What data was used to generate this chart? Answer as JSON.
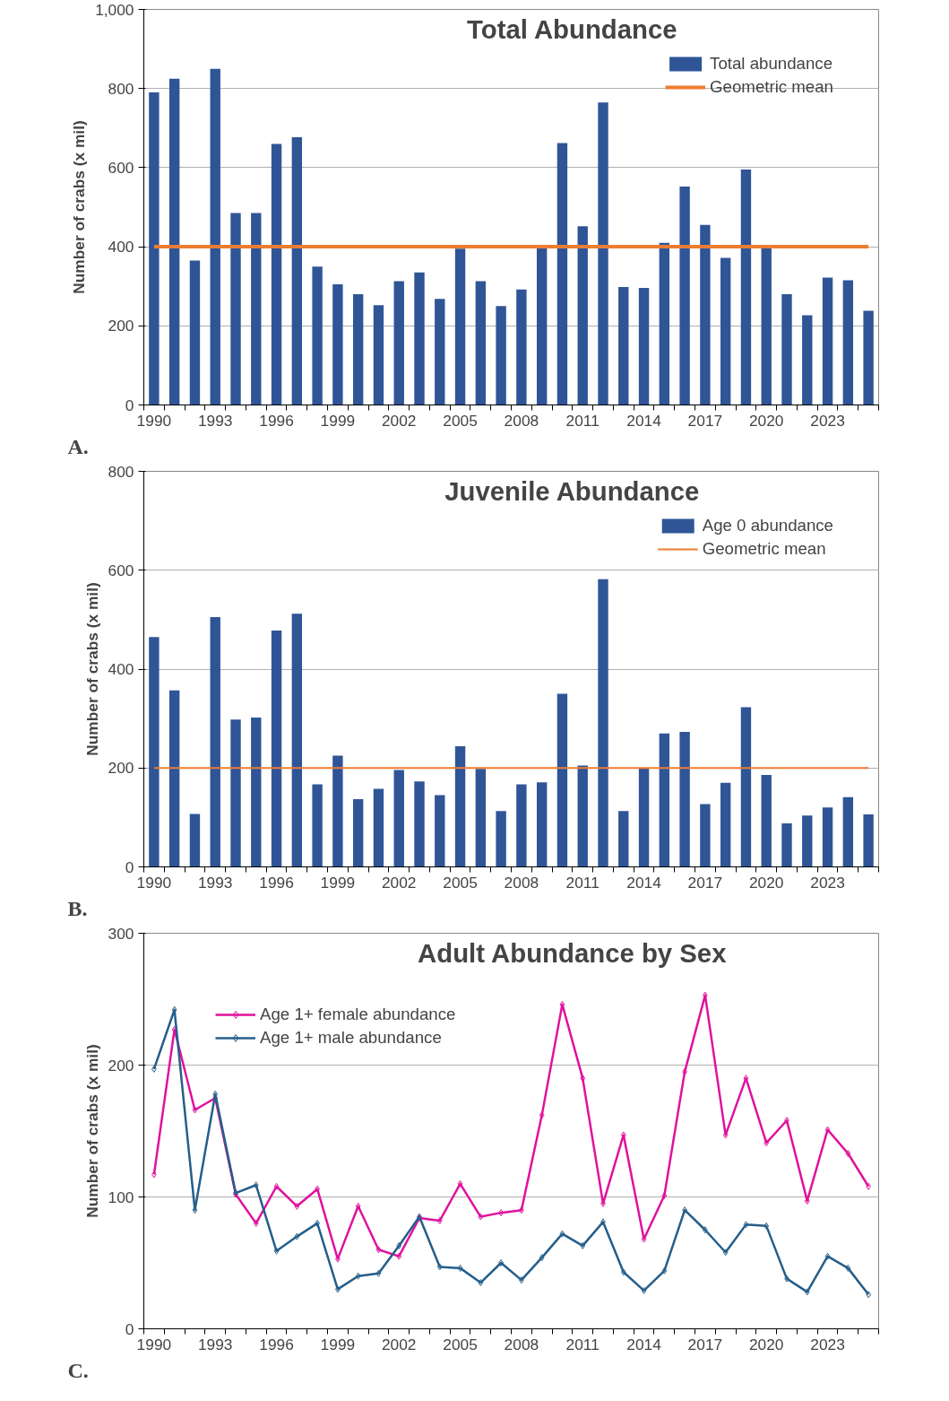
{
  "chart_data": [
    {
      "type": "bar",
      "title": "Total Abundance",
      "ylabel": "Number of crabs (x mil)",
      "annotations": [
        "A."
      ],
      "categories": [
        "1990",
        null,
        null,
        "1993",
        null,
        null,
        "1996",
        null,
        null,
        "1999",
        null,
        null,
        "2002",
        null,
        null,
        "2005",
        null,
        null,
        "2008",
        null,
        null,
        "2011",
        null,
        null,
        "2014",
        null,
        null,
        "2017",
        null,
        null,
        "2020",
        null,
        null,
        "2023",
        null,
        null
      ],
      "series": [
        {
          "name": "Total abundance",
          "color": "#2f5597",
          "values": [
            790,
            825,
            365,
            850,
            485,
            485,
            660,
            677,
            350,
            305,
            280,
            252,
            313,
            335,
            268,
            395,
            313,
            250,
            292,
            398,
            662,
            452,
            765,
            298,
            296,
            410,
            552,
            455,
            372,
            595,
            398,
            280,
            227,
            322,
            315,
            238
          ]
        }
      ],
      "ref_lines": [
        {
          "axis": "y",
          "value": 400,
          "label": "Geometric mean",
          "color": "#ed7d31"
        }
      ],
      "ylim": [
        0,
        1000
      ],
      "yticks": [
        0,
        200,
        400,
        600,
        800,
        {
          "value": 1000,
          "label": "1,000"
        }
      ],
      "grid": "y",
      "legend": "top right"
    },
    {
      "type": "bar",
      "title": "Juvenile Abundance",
      "ylabel": "Number of crabs (x mil)",
      "annotations": [
        "B."
      ],
      "categories": [
        "1990",
        null,
        null,
        "1993",
        null,
        null,
        "1996",
        null,
        null,
        "1999",
        null,
        null,
        "2002",
        null,
        null,
        "2005",
        null,
        null,
        "2008",
        null,
        null,
        "2011",
        null,
        null,
        "2014",
        null,
        null,
        "2017",
        null,
        null,
        "2020",
        null,
        null,
        "2023",
        null,
        null
      ],
      "series": [
        {
          "name": "Age 0 abundance",
          "color": "#2f5597",
          "values": [
            465,
            357,
            107,
            505,
            298,
            302,
            478,
            512,
            167,
            225,
            137,
            158,
            196,
            173,
            145,
            244,
            198,
            113,
            167,
            171,
            350,
            205,
            582,
            113,
            200,
            270,
            273,
            127,
            170,
            323,
            186,
            88,
            104,
            120,
            141,
            106
          ]
        }
      ],
      "ref_lines": [
        {
          "axis": "y",
          "value": 200,
          "label": "Geometric mean",
          "color": "#ed7d31"
        }
      ],
      "ylim": [
        0,
        800
      ],
      "yticks": [
        0,
        200,
        400,
        600,
        800
      ],
      "grid": "y",
      "legend": "top right"
    },
    {
      "type": "line",
      "title": "Adult Abundance by Sex",
      "ylabel": "Number of crabs (x mil)",
      "annotations": [
        "C."
      ],
      "categories": [
        "1990",
        null,
        null,
        "1993",
        null,
        null,
        "1996",
        null,
        null,
        "1999",
        null,
        null,
        "2002",
        null,
        null,
        "2005",
        null,
        null,
        "2008",
        null,
        null,
        "2011",
        null,
        null,
        "2014",
        null,
        null,
        "2017",
        null,
        null,
        "2020",
        null,
        null,
        "2023",
        null,
        null
      ],
      "series": [
        {
          "name": "Age 1+ female abundance",
          "color": "#e0119d",
          "values": [
            117,
            227,
            166,
            175,
            102,
            80,
            108,
            93,
            106,
            53,
            93,
            60,
            55,
            84,
            82,
            110,
            85,
            88,
            90,
            162,
            246,
            190,
            95,
            147,
            68,
            101,
            195,
            253,
            147,
            190,
            141,
            158,
            97,
            151,
            133,
            108
          ]
        },
        {
          "name": "Age 1+ male abundance",
          "color": "#255e8a",
          "values": [
            197,
            242,
            90,
            178,
            103,
            109,
            59,
            70,
            80,
            30,
            40,
            42,
            63,
            85,
            47,
            46,
            35,
            50,
            37,
            54,
            72,
            63,
            81,
            43,
            29,
            44,
            90,
            75,
            58,
            79,
            78,
            38,
            28,
            55,
            46,
            26
          ]
        }
      ],
      "ylim": [
        0,
        300
      ],
      "yticks": [
        0,
        100,
        200,
        300
      ],
      "grid": "y",
      "legend": "top left",
      "marker": "diamond",
      "line_style": "solid"
    }
  ]
}
